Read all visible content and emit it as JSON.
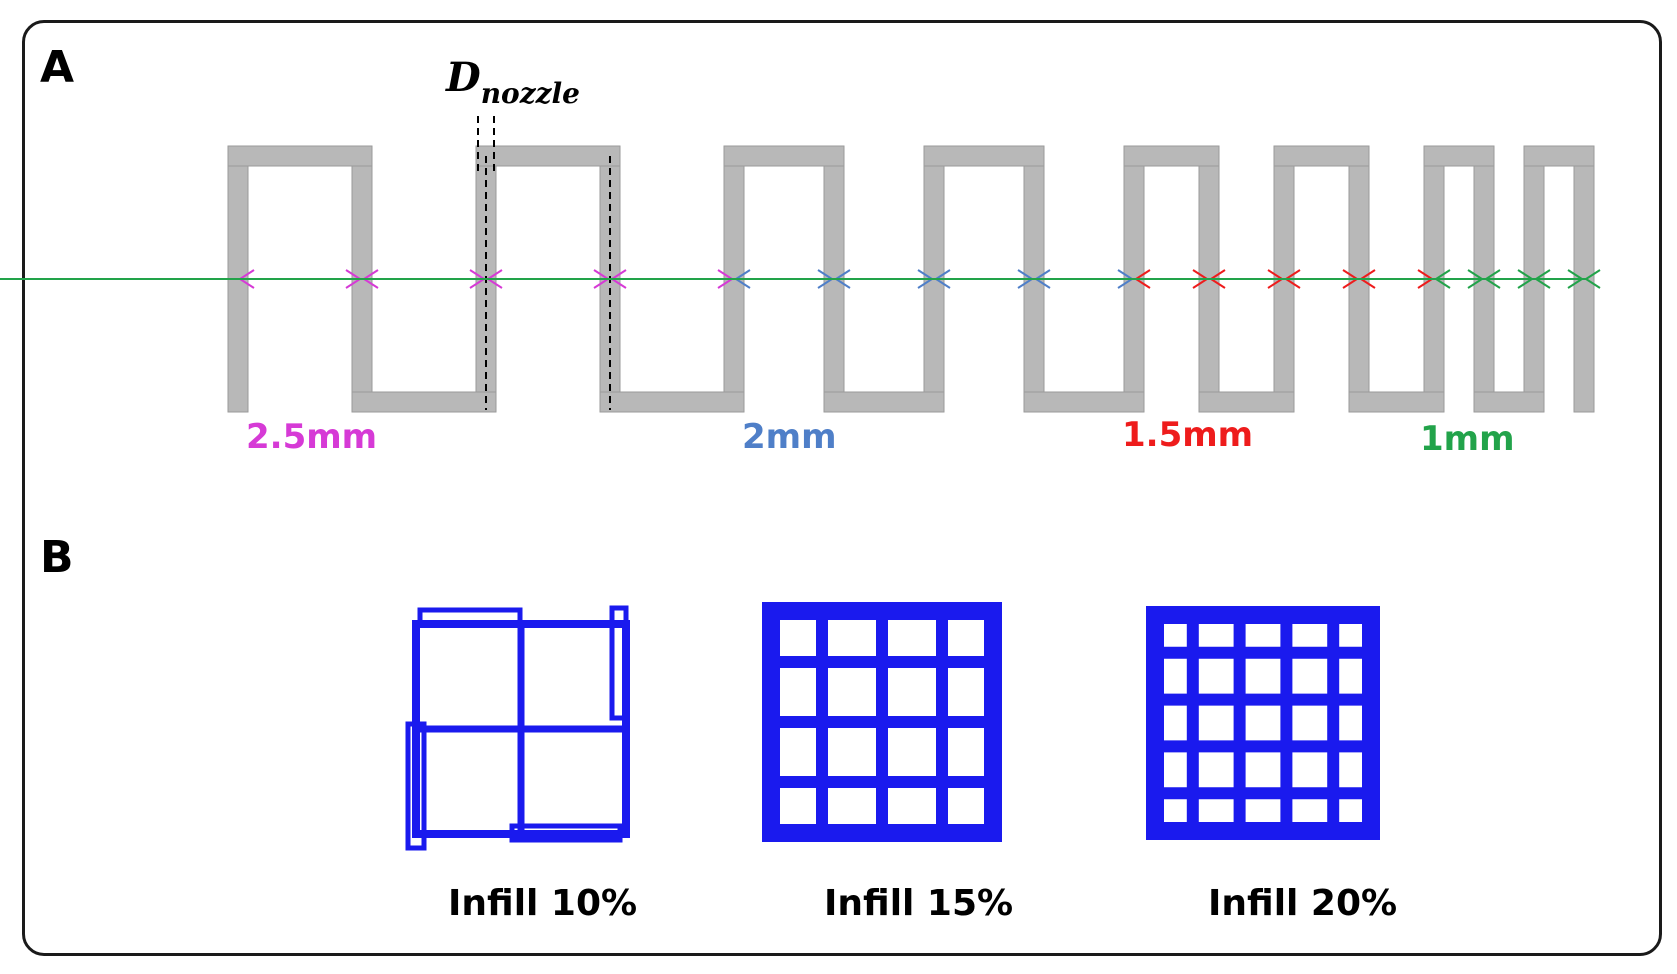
{
  "panel_a": {
    "label": "A",
    "nozzle_label": {
      "main": "D",
      "sub": "nozzle"
    },
    "spacings": [
      {
        "label": "2.5mm",
        "color": "#d63ad6",
        "segments": 4
      },
      {
        "label": "2mm",
        "color": "#4f7fc8",
        "segments": 4
      },
      {
        "label": "1.5mm",
        "color": "#ee1c1c",
        "segments": 4
      },
      {
        "label": "1mm",
        "color": "#22a34a",
        "segments": 4
      }
    ],
    "strand_color": "#b8b8b8"
  },
  "panel_b": {
    "label": "B",
    "patterns": [
      {
        "label": "Infill 10%",
        "grid": 2
      },
      {
        "label": "Infill 15%",
        "grid": 4
      },
      {
        "label": "Infill 20%",
        "grid": 5
      }
    ],
    "pattern_color": "#1a1aee"
  }
}
